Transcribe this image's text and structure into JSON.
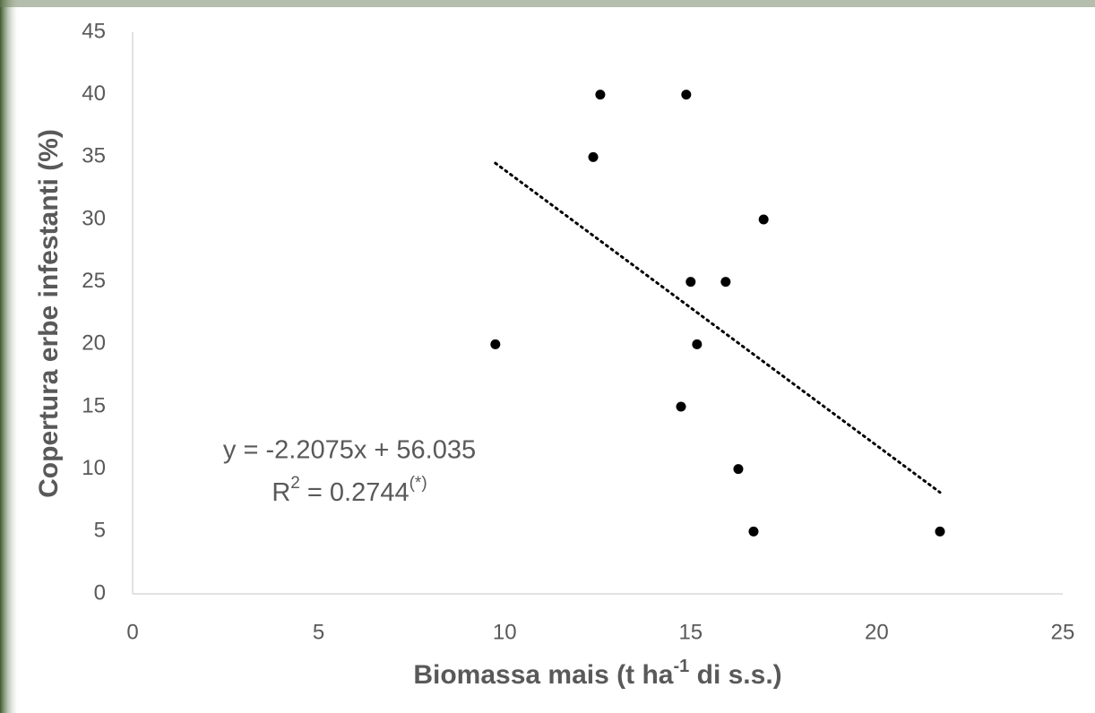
{
  "chart_data": {
    "type": "scatter",
    "x_label": [
      "Biomassa mais (t ha",
      "-1",
      " di s.s.)"
    ],
    "y_label": "Copertura erbe infestanti (%)",
    "series": [
      {
        "color": "#000000",
        "x": [
          9.75,
          12.57,
          14.88,
          12.38,
          16.96,
          15.0,
          15.94,
          15.17,
          14.74,
          16.28,
          16.69,
          21.7
        ],
        "values": [
          20,
          40,
          40,
          35,
          30,
          25,
          25,
          20,
          15,
          10,
          5,
          5
        ]
      }
    ],
    "trendline": {
      "slope": -2.2075,
      "intercept": 56.035,
      "style": "dotted",
      "equation": "y = -2.2075x + 56.035",
      "r2": [
        "R",
        "2",
        " = 0.2744",
        "(*)"
      ]
    },
    "xlim": [
      0,
      25
    ],
    "xticks": [
      0,
      5,
      10,
      15,
      20,
      25
    ],
    "ylim": [
      0,
      45
    ],
    "yticks": [
      0,
      5,
      10,
      15,
      20,
      25,
      30,
      35,
      40,
      45
    ],
    "grid": false
  }
}
